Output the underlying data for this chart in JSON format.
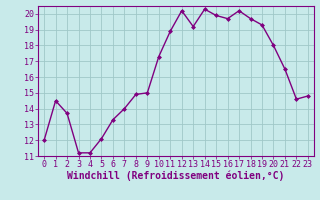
{
  "x": [
    0,
    1,
    2,
    3,
    4,
    5,
    6,
    7,
    8,
    9,
    10,
    11,
    12,
    13,
    14,
    15,
    16,
    17,
    18,
    19,
    20,
    21,
    22,
    23
  ],
  "y": [
    12.0,
    14.5,
    13.7,
    11.2,
    11.2,
    12.1,
    13.3,
    14.0,
    14.9,
    15.0,
    17.3,
    18.9,
    20.2,
    19.2,
    20.3,
    19.9,
    19.7,
    20.2,
    19.7,
    19.3,
    18.0,
    16.5,
    14.6,
    14.8
  ],
  "line_color": "#800080",
  "marker": "D",
  "marker_size": 2.0,
  "bg_color": "#c8eaea",
  "grid_color": "#a0c8c8",
  "xlabel": "Windchill (Refroidissement éolien,°C)",
  "xlabel_fontsize": 7,
  "ylim": [
    11,
    20.5
  ],
  "xlim": [
    -0.5,
    23.5
  ],
  "yticks": [
    11,
    12,
    13,
    14,
    15,
    16,
    17,
    18,
    19,
    20
  ],
  "xticks": [
    0,
    1,
    2,
    3,
    4,
    5,
    6,
    7,
    8,
    9,
    10,
    11,
    12,
    13,
    14,
    15,
    16,
    17,
    18,
    19,
    20,
    21,
    22,
    23
  ],
  "tick_fontsize": 6,
  "line_width": 1.0
}
